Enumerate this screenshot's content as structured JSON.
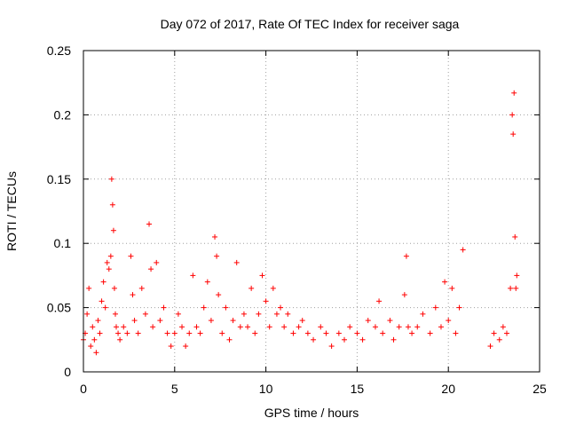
{
  "chart_data": {
    "type": "scatter",
    "title": "Day 072 of 2017, Rate Of TEC Index for receiver saga",
    "xlabel": "GPS time / hours",
    "ylabel": "ROTI / TECUs",
    "xlim": [
      0,
      25
    ],
    "ylim": [
      0,
      0.25
    ],
    "xticks": [
      0,
      5,
      10,
      15,
      20,
      25
    ],
    "yticks": [
      0,
      0.05,
      0.1,
      0.15,
      0.2,
      0.25
    ],
    "xtick_labels": [
      "0",
      "5",
      "10",
      "15",
      "20",
      "25"
    ],
    "ytick_labels": [
      "0",
      "0.05",
      "0.1",
      "0.15",
      "0.2",
      "0.25"
    ],
    "grid": true,
    "marker": "plus",
    "color": "#ff0000",
    "series": [
      {
        "name": "ROTI",
        "note": "dense per-satellite scatter, summarized as representative points",
        "x": [
          0.0,
          0.1,
          0.2,
          0.3,
          0.4,
          0.5,
          0.6,
          0.7,
          0.8,
          0.9,
          1.0,
          1.1,
          1.2,
          1.3,
          1.4,
          1.5,
          1.55,
          1.6,
          1.65,
          1.7,
          1.75,
          1.8,
          1.9,
          2.0,
          2.2,
          2.4,
          2.6,
          2.7,
          2.8,
          3.0,
          3.2,
          3.4,
          3.6,
          3.7,
          3.8,
          4.0,
          4.2,
          4.4,
          4.6,
          4.8,
          5.0,
          5.2,
          5.4,
          5.6,
          5.8,
          6.0,
          6.2,
          6.4,
          6.6,
          6.8,
          7.0,
          7.2,
          7.3,
          7.4,
          7.6,
          7.8,
          8.0,
          8.2,
          8.4,
          8.6,
          8.8,
          9.0,
          9.2,
          9.4,
          9.6,
          9.8,
          10.0,
          10.2,
          10.4,
          10.6,
          10.8,
          11.0,
          11.2,
          11.5,
          11.8,
          12.0,
          12.3,
          12.6,
          13.0,
          13.3,
          13.6,
          14.0,
          14.3,
          14.6,
          15.0,
          15.3,
          15.6,
          16.0,
          16.2,
          16.4,
          16.8,
          17.0,
          17.3,
          17.6,
          17.7,
          17.8,
          18.0,
          18.3,
          18.6,
          19.0,
          19.3,
          19.6,
          19.8,
          20.0,
          20.2,
          20.4,
          20.6,
          20.8,
          22.3,
          22.5,
          22.8,
          23.0,
          23.2,
          23.4,
          23.5,
          23.55,
          23.6,
          23.65,
          23.7,
          23.75
        ],
        "y": [
          0.025,
          0.03,
          0.045,
          0.065,
          0.02,
          0.035,
          0.025,
          0.015,
          0.04,
          0.03,
          0.055,
          0.07,
          0.05,
          0.085,
          0.08,
          0.09,
          0.15,
          0.13,
          0.11,
          0.065,
          0.045,
          0.035,
          0.03,
          0.025,
          0.035,
          0.03,
          0.09,
          0.06,
          0.04,
          0.03,
          0.065,
          0.045,
          0.115,
          0.08,
          0.035,
          0.085,
          0.04,
          0.05,
          0.03,
          0.02,
          0.03,
          0.045,
          0.035,
          0.02,
          0.03,
          0.075,
          0.035,
          0.03,
          0.05,
          0.07,
          0.04,
          0.105,
          0.09,
          0.06,
          0.03,
          0.05,
          0.025,
          0.04,
          0.085,
          0.035,
          0.045,
          0.035,
          0.065,
          0.03,
          0.045,
          0.075,
          0.055,
          0.035,
          0.065,
          0.045,
          0.05,
          0.035,
          0.045,
          0.03,
          0.035,
          0.04,
          0.03,
          0.025,
          0.035,
          0.03,
          0.02,
          0.03,
          0.025,
          0.035,
          0.03,
          0.025,
          0.04,
          0.035,
          0.055,
          0.03,
          0.04,
          0.025,
          0.035,
          0.06,
          0.09,
          0.035,
          0.03,
          0.035,
          0.045,
          0.03,
          0.05,
          0.035,
          0.07,
          0.04,
          0.065,
          0.03,
          0.05,
          0.095,
          0.02,
          0.03,
          0.025,
          0.035,
          0.03,
          0.065,
          0.2,
          0.185,
          0.217,
          0.105,
          0.065,
          0.075
        ]
      }
    ]
  }
}
